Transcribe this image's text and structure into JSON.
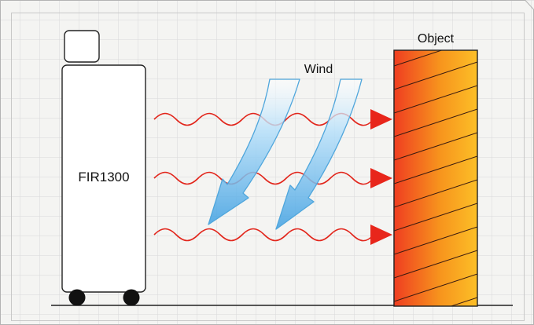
{
  "diagram": {
    "device_label": "FIR1300",
    "wind_label": "Wind",
    "object_label": "Object"
  },
  "colors": {
    "background": "#f4f4f2",
    "grid": "#d9d9d9",
    "frame": "#b3b3b3",
    "outline": "#222222",
    "wave": "#e2261c",
    "arrowhead": "#e8261b",
    "wind_fill": "#9fd3f5",
    "wind_stroke": "#4fa6dc",
    "object_gradient": [
      "#ef3e21",
      "#f7941d",
      "#fcbf27"
    ]
  },
  "icons": {
    "wave_rows": 3,
    "wind_arrows": 2,
    "wheels": 2
  }
}
